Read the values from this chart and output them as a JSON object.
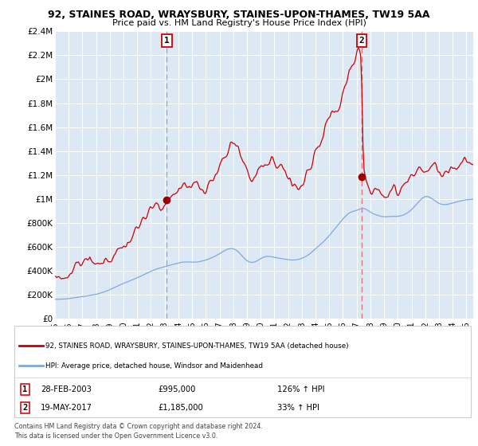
{
  "title": "92, STAINES ROAD, WRAYSBURY, STAINES-UPON-THAMES, TW19 5AA",
  "subtitle": "Price paid vs. HM Land Registry's House Price Index (HPI)",
  "ylim": [
    0,
    2400000
  ],
  "yticks": [
    0,
    200000,
    400000,
    600000,
    800000,
    1000000,
    1200000,
    1400000,
    1600000,
    1800000,
    2000000,
    2200000,
    2400000
  ],
  "ytick_labels": [
    "£0",
    "£200K",
    "£400K",
    "£600K",
    "£800K",
    "£1M",
    "£1.2M",
    "£1.4M",
    "£1.6M",
    "£1.8M",
    "£2M",
    "£2.2M",
    "£2.4M"
  ],
  "xlim_start": 1995.0,
  "xlim_end": 2025.5,
  "xticks": [
    1995,
    1996,
    1997,
    1998,
    1999,
    2000,
    2001,
    2002,
    2003,
    2004,
    2005,
    2006,
    2007,
    2008,
    2009,
    2010,
    2011,
    2012,
    2013,
    2014,
    2015,
    2016,
    2017,
    2018,
    2019,
    2020,
    2021,
    2022,
    2023,
    2024,
    2025
  ],
  "marker1_date": 2003.16,
  "marker1_price": 995000,
  "marker1_label": "28-FEB-2003",
  "marker1_price_str": "£995,000",
  "marker1_hpi": "126% ↑ HPI",
  "marker2_date": 2017.38,
  "marker2_price": 1185000,
  "marker2_label": "19-MAY-2017",
  "marker2_price_str": "£1,185,000",
  "marker2_hpi": "33% ↑ HPI",
  "red_line_color": "#cc0000",
  "blue_line_color": "#7faadd",
  "marker_color": "#990000",
  "vline1_color": "#aaaaaa",
  "vline2_color": "#dd7777",
  "bg_color": "#dde8f5",
  "grid_color": "#ffffff",
  "fig_bg": "#f0f0f0",
  "legend1": "92, STAINES ROAD, WRAYSBURY, STAINES-UPON-THAMES, TW19 5AA (detached house)",
  "legend2": "HPI: Average price, detached house, Windsor and Maidenhead",
  "footer1": "Contains HM Land Registry data © Crown copyright and database right 2024.",
  "footer2": "This data is licensed under the Open Government Licence v3.0."
}
